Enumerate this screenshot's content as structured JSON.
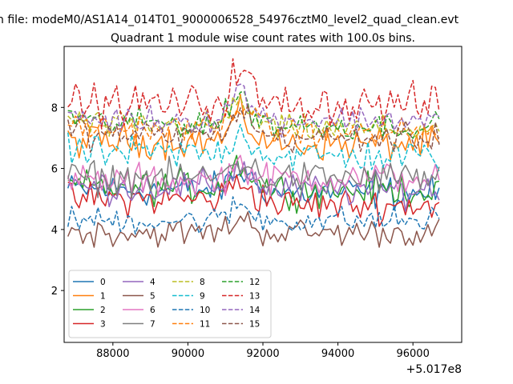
{
  "chart_data": {
    "type": "line",
    "suptitle": "n file: modeM0/AS1A14_014T01_9000006528_54976cztM0_level2_quad_clean.evt",
    "title": "Quadrant 1 module wise count rates with 100.0s bins.",
    "xlabel": "",
    "ylabel": "",
    "x_offset_label": "+5.017e8",
    "xlim": [
      86700,
      97300
    ],
    "ylim": [
      0.3,
      10.0
    ],
    "x_ticks": [
      88000,
      90000,
      92000,
      94000,
      96000
    ],
    "x_tick_labels": [
      "88000",
      "90000",
      "92000",
      "94000",
      "96000"
    ],
    "y_ticks": [
      2,
      4,
      6,
      8
    ],
    "y_tick_labels": [
      "2",
      "4",
      "6",
      "8"
    ],
    "grid": false,
    "legend_position": "lower-left",
    "legend_columns": 4,
    "x_range": {
      "start": 86800,
      "end": 96750,
      "step": 100
    },
    "gap_points": [
      {
        "x": 92250,
        "value_ratio": 0.6
      },
      {
        "x": 92350,
        "value_ratio": 0.18
      },
      {
        "x": 92450,
        "value_ratio": 0.55
      }
    ],
    "series": [
      {
        "name": "0",
        "color": "#1f77b4",
        "dash": "solid",
        "mean_before": 5.3,
        "mean_after": 5.2,
        "noise": 0.3,
        "peak_boost": 0.6
      },
      {
        "name": "1",
        "color": "#ff7f0e",
        "dash": "solid",
        "mean_before": 6.9,
        "mean_after": 6.8,
        "noise": 0.3,
        "peak_boost": 0.8
      },
      {
        "name": "2",
        "color": "#2ca02c",
        "dash": "solid",
        "mean_before": 5.4,
        "mean_after": 5.3,
        "noise": 0.3,
        "peak_boost": 0.8
      },
      {
        "name": "3",
        "color": "#d62728",
        "dash": "solid",
        "mean_before": 5.0,
        "mean_after": 4.8,
        "noise": 0.3,
        "peak_boost": 0.6
      },
      {
        "name": "4",
        "color": "#9467bd",
        "dash": "solid",
        "mean_before": 5.4,
        "mean_after": 5.3,
        "noise": 0.3,
        "peak_boost": 0.7
      },
      {
        "name": "5",
        "color": "#8c564b",
        "dash": "solid",
        "mean_before": 3.9,
        "mean_after": 3.9,
        "noise": 0.25,
        "peak_boost": 0.5
      },
      {
        "name": "6",
        "color": "#e377c2",
        "dash": "solid",
        "mean_before": 5.6,
        "mean_after": 5.7,
        "noise": 0.3,
        "peak_boost": 0.6
      },
      {
        "name": "7",
        "color": "#7f7f7f",
        "dash": "solid",
        "mean_before": 5.7,
        "mean_after": 5.7,
        "noise": 0.3,
        "peak_boost": 0.6
      },
      {
        "name": "8",
        "color": "#bcbd22",
        "dash": "dashed",
        "mean_before": 7.4,
        "mean_after": 7.3,
        "noise": 0.25,
        "peak_boost": 0.8
      },
      {
        "name": "9",
        "color": "#17becf",
        "dash": "dashed",
        "mean_before": 6.5,
        "mean_after": 6.4,
        "noise": 0.3,
        "peak_boost": 0.7
      },
      {
        "name": "10",
        "color": "#1f77b4",
        "dash": "dashed",
        "mean_before": 4.3,
        "mean_after": 4.3,
        "noise": 0.25,
        "peak_boost": 0.5
      },
      {
        "name": "11",
        "color": "#ff7f0e",
        "dash": "dashed",
        "mean_before": 7.3,
        "mean_after": 7.2,
        "noise": 0.25,
        "peak_boost": 0.9
      },
      {
        "name": "12",
        "color": "#2ca02c",
        "dash": "dashed",
        "mean_before": 7.5,
        "mean_after": 7.4,
        "noise": 0.25,
        "peak_boost": 0.9
      },
      {
        "name": "13",
        "color": "#d62728",
        "dash": "dashed",
        "mean_before": 8.1,
        "mean_after": 8.1,
        "noise": 0.35,
        "peak_boost": 1.2
      },
      {
        "name": "14",
        "color": "#9467bd",
        "dash": "dashed",
        "mean_before": 7.6,
        "mean_after": 7.6,
        "noise": 0.25,
        "peak_boost": 1.0
      },
      {
        "name": "15",
        "color": "#8c564b",
        "dash": "dashed",
        "mean_before": 7.1,
        "mean_after": 7.0,
        "noise": 0.25,
        "peak_boost": 0.8
      }
    ]
  }
}
